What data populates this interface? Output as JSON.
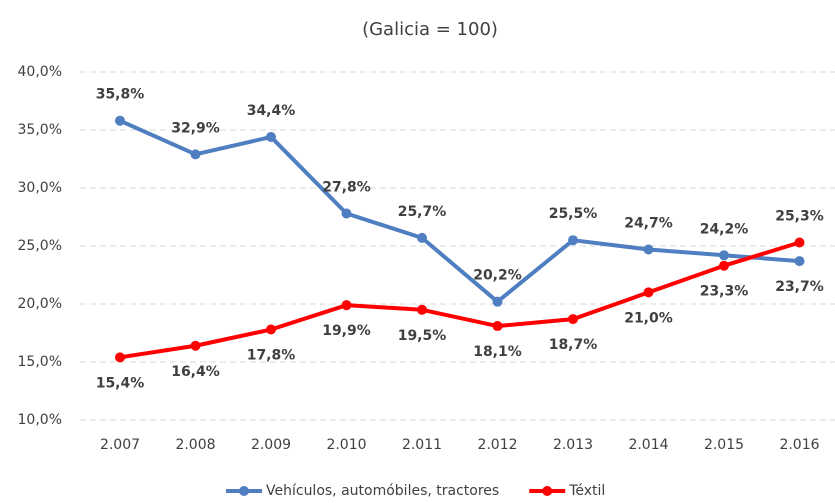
{
  "chart_data": {
    "type": "line",
    "title": "(Galicia = 100)",
    "categories": [
      "2.007",
      "2.008",
      "2.009",
      "2.010",
      "2.011",
      "2.012",
      "2.013",
      "2.014",
      "2.015",
      "2.016"
    ],
    "series": [
      {
        "name": "Vehículos, automóbiles, tractores",
        "color": "#4f7fc0",
        "values": [
          35.8,
          32.9,
          34.4,
          27.8,
          25.7,
          20.2,
          25.5,
          24.7,
          24.2,
          23.7
        ],
        "value_labels": [
          "35,8%",
          "32,9%",
          "34,4%",
          "27,8%",
          "25,7%",
          "20,2%",
          "25,5%",
          "24,7%",
          "24,2%",
          "23,7%"
        ]
      },
      {
        "name": "Téxtil",
        "color": "#ff0000",
        "values": [
          15.4,
          16.4,
          17.8,
          19.9,
          19.5,
          18.1,
          18.7,
          21.0,
          23.3,
          25.3
        ],
        "value_labels": [
          "15,4%",
          "16,4%",
          "17,8%",
          "19,9%",
          "19,5%",
          "18,1%",
          "18,7%",
          "21,0%",
          "23,3%",
          "25,3%"
        ]
      }
    ],
    "ylim": [
      10,
      40
    ],
    "yticks": [
      {
        "value": 10,
        "label": "10,0%"
      },
      {
        "value": 15,
        "label": "15,0%"
      },
      {
        "value": 20,
        "label": "20,0%"
      },
      {
        "value": 25,
        "label": "25,0%"
      },
      {
        "value": 30,
        "label": "30,0%"
      },
      {
        "value": 35,
        "label": "35,0%"
      },
      {
        "value": 40,
        "label": "40,0%"
      }
    ],
    "grid": true,
    "legend": "bottom"
  }
}
